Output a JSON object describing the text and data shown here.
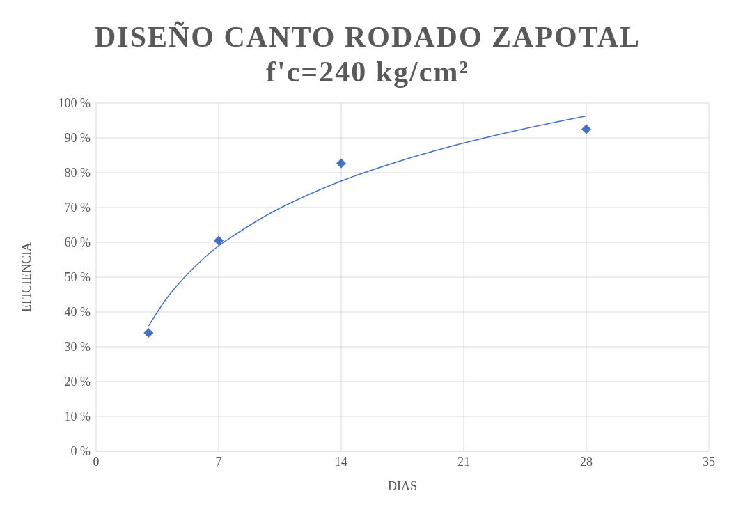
{
  "chart_data": {
    "type": "scatter",
    "title": "DISEÑO CANTO RODADO ZAPOTAL",
    "subtitle": "f'c=240 kg/cm²",
    "xlabel": "DIAS",
    "ylabel": "EFICIENCIA",
    "xlim": [
      0,
      35
    ],
    "xticks": [
      0,
      7,
      14,
      21,
      28,
      35
    ],
    "ylim": [
      0,
      100
    ],
    "yticks": [
      {
        "value": 0,
        "label": "0 %"
      },
      {
        "value": 10,
        "label": "10 %"
      },
      {
        "value": 20,
        "label": "20 %"
      },
      {
        "value": 30,
        "label": "30 %"
      },
      {
        "value": 40,
        "label": "40 %"
      },
      {
        "value": 50,
        "label": "50 %"
      },
      {
        "value": 60,
        "label": "60 %"
      },
      {
        "value": 70,
        "label": "70 %"
      },
      {
        "value": 80,
        "label": "80 %"
      },
      {
        "value": 90,
        "label": "90 %"
      },
      {
        "value": 100,
        "label": "100 %"
      }
    ],
    "grid": true,
    "marker": "diamond",
    "series": [
      {
        "color": "#4472c4",
        "x": [
          3,
          7,
          14,
          28
        ],
        "values": [
          34,
          60.5,
          82.7,
          92.5
        ]
      },
      {
        "type": "line",
        "color": "#4472c4",
        "marker": "none",
        "line_style": "solid",
        "x": [
          3,
          4,
          5,
          6,
          7,
          8,
          10,
          12,
          14,
          17,
          20,
          24,
          28
        ],
        "values": [
          36,
          43.7,
          49.7,
          54.7,
          59,
          62.4,
          68.5,
          73.4,
          77.6,
          82.8,
          87.2,
          92.1,
          96.3
        ]
      }
    ]
  }
}
